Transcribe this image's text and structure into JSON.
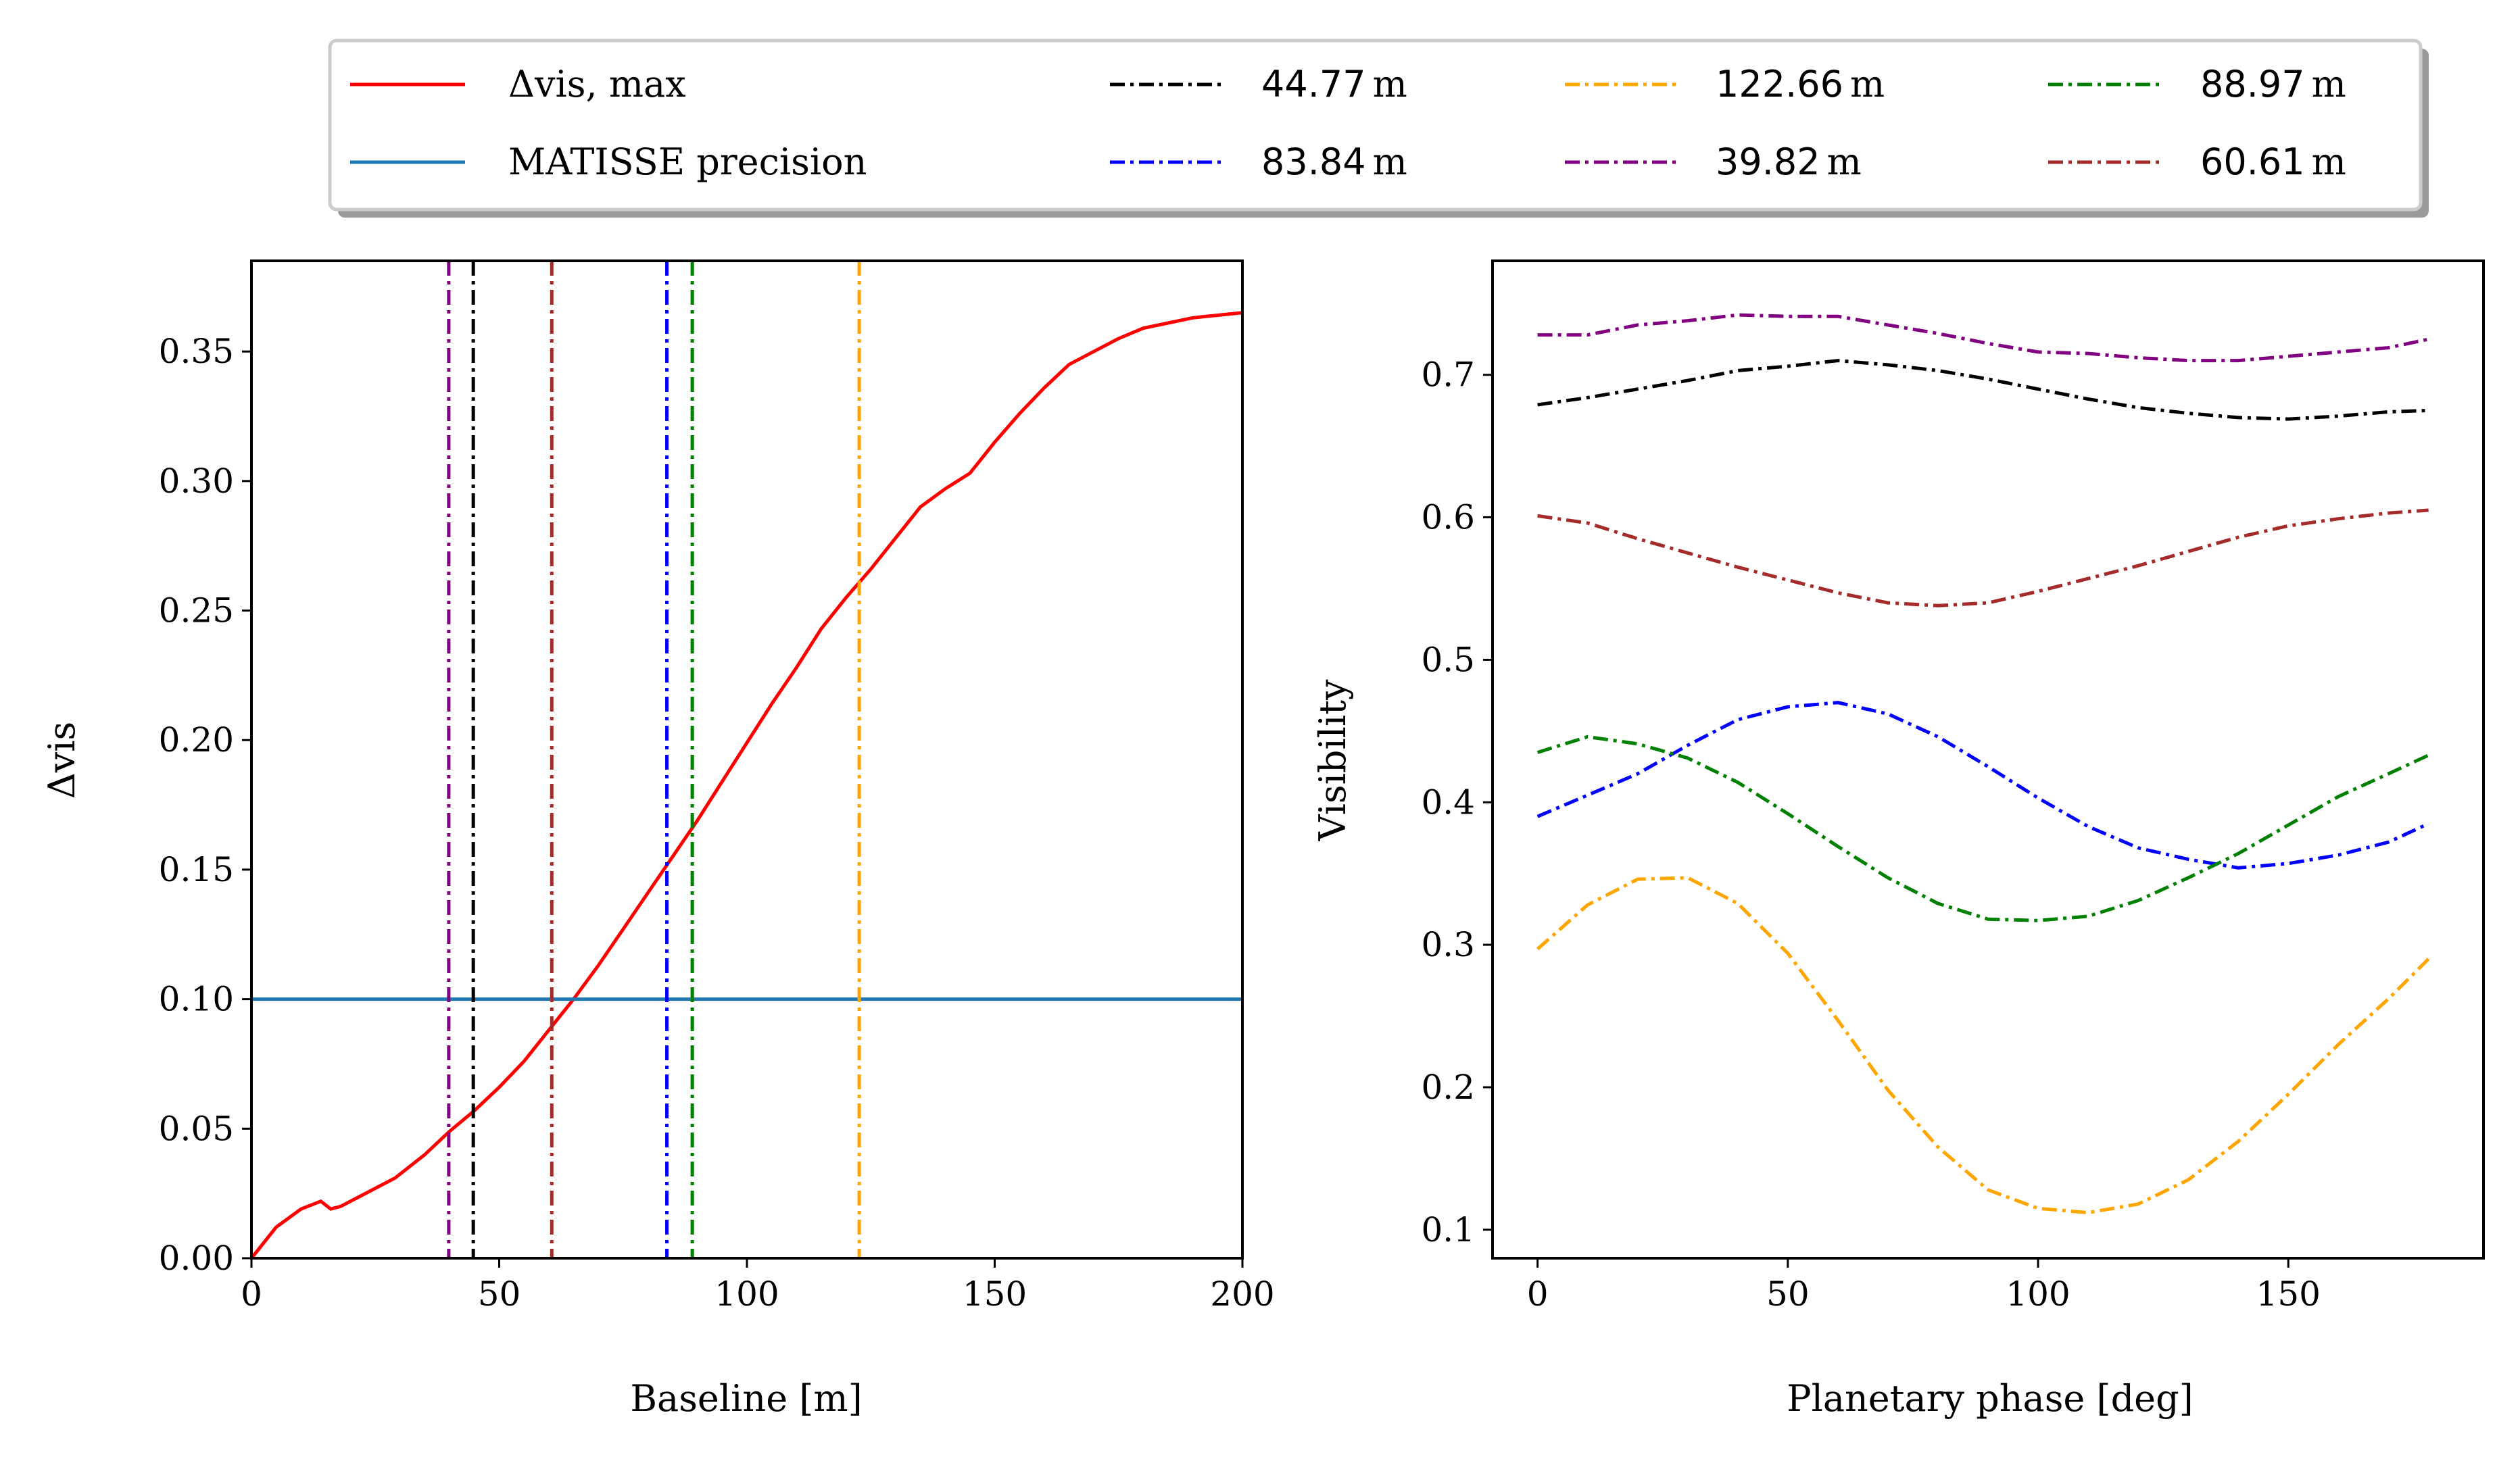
{
  "legend": {
    "entries": [
      {
        "label": "Δvis, max",
        "color": "#ff0000",
        "style": "solid"
      },
      {
        "label": "MATISSE precision",
        "color": "#1f77b4",
        "style": "solid"
      },
      {
        "value": "44.77",
        "unit": "m",
        "color": "#000000",
        "style": "dashdot"
      },
      {
        "value": "83.84",
        "unit": "m",
        "color": "#0000ff",
        "style": "dashdot"
      },
      {
        "value": "122.66",
        "unit": "m",
        "color": "#ffa500",
        "style": "dashdot"
      },
      {
        "value": "39.82",
        "unit": "m",
        "color": "#800080",
        "style": "dashdot"
      },
      {
        "value": "88.97",
        "unit": "m",
        "color": "#008000",
        "style": "dashdot"
      },
      {
        "value": "60.61",
        "unit": "m",
        "color": "#a52a2a",
        "style": "dashdot"
      }
    ]
  },
  "chart_data": [
    {
      "type": "line",
      "xlabel": "Baseline [m]",
      "ylabel": "Δvis",
      "xlim": [
        0,
        200
      ],
      "ylim": [
        0,
        0.385
      ],
      "xticks": [
        "0",
        "50",
        "100",
        "150",
        "200"
      ],
      "yticks": [
        "0.00",
        "0.05",
        "0.10",
        "0.15",
        "0.20",
        "0.25",
        "0.30",
        "0.35"
      ],
      "series": [
        {
          "name": "Δvis, max",
          "color": "#ff0000",
          "x": [
            0,
            5,
            10,
            14,
            16,
            18,
            22,
            25,
            29,
            35,
            40,
            45,
            50,
            55,
            60,
            65,
            70,
            75,
            80,
            85,
            90,
            95,
            100,
            105,
            110,
            115,
            120,
            125,
            130,
            135,
            140,
            145,
            150,
            155,
            160,
            165,
            170,
            175,
            180,
            185,
            190,
            195,
            200
          ],
          "y": [
            0.0,
            0.012,
            0.019,
            0.022,
            0.019,
            0.02,
            0.024,
            0.027,
            0.031,
            0.04,
            0.049,
            0.057,
            0.066,
            0.076,
            0.088,
            0.1,
            0.113,
            0.127,
            0.141,
            0.155,
            0.169,
            0.184,
            0.199,
            0.214,
            0.228,
            0.243,
            0.255,
            0.266,
            0.278,
            0.29,
            0.297,
            0.303,
            0.315,
            0.326,
            0.336,
            0.345,
            0.35,
            0.355,
            0.359,
            0.361,
            0.363,
            0.364,
            0.365
          ]
        },
        {
          "name": "MATISSE precision",
          "color": "#1f77b4",
          "x": [
            0,
            200
          ],
          "y": [
            0.1,
            0.1
          ]
        }
      ],
      "vlines": [
        {
          "x": 39.82,
          "color": "#800080"
        },
        {
          "x": 44.77,
          "color": "#000000"
        },
        {
          "x": 60.61,
          "color": "#a52a2a"
        },
        {
          "x": 83.84,
          "color": "#0000ff"
        },
        {
          "x": 88.97,
          "color": "#008000"
        },
        {
          "x": 122.66,
          "color": "#ffa500"
        }
      ]
    },
    {
      "type": "line",
      "xlabel": "Planetary phase [deg]",
      "ylabel": "Visibility",
      "xlim": [
        -9,
        189
      ],
      "ylim": [
        0.08,
        0.78
      ],
      "xticks": [
        "0",
        "50",
        "100",
        "150"
      ],
      "yticks": [
        "0.1",
        "0.2",
        "0.3",
        "0.4",
        "0.5",
        "0.6",
        "0.7"
      ],
      "series": [
        {
          "name": "39.82 m",
          "color": "#800080",
          "x": [
            0,
            10,
            20,
            30,
            40,
            50,
            60,
            70,
            80,
            90,
            100,
            110,
            120,
            130,
            140,
            150,
            160,
            170,
            178
          ],
          "y": [
            0.728,
            0.728,
            0.735,
            0.738,
            0.742,
            0.741,
            0.741,
            0.735,
            0.729,
            0.722,
            0.716,
            0.715,
            0.712,
            0.71,
            0.71,
            0.713,
            0.716,
            0.719,
            0.725
          ]
        },
        {
          "name": "44.77 m",
          "color": "#000000",
          "x": [
            0,
            10,
            20,
            30,
            40,
            50,
            60,
            70,
            80,
            90,
            100,
            110,
            120,
            130,
            140,
            150,
            160,
            170,
            178
          ],
          "y": [
            0.679,
            0.684,
            0.69,
            0.696,
            0.703,
            0.706,
            0.71,
            0.707,
            0.703,
            0.697,
            0.69,
            0.683,
            0.677,
            0.673,
            0.67,
            0.669,
            0.671,
            0.674,
            0.675
          ]
        },
        {
          "name": "60.61 m",
          "color": "#a52a2a",
          "x": [
            0,
            10,
            20,
            30,
            40,
            50,
            60,
            70,
            80,
            90,
            100,
            110,
            120,
            130,
            140,
            150,
            160,
            170,
            178
          ],
          "y": [
            0.601,
            0.596,
            0.585,
            0.575,
            0.565,
            0.556,
            0.547,
            0.54,
            0.538,
            0.54,
            0.548,
            0.557,
            0.566,
            0.576,
            0.586,
            0.594,
            0.599,
            0.603,
            0.605
          ]
        },
        {
          "name": "83.84 m",
          "color": "#0000ff",
          "x": [
            0,
            10,
            20,
            30,
            40,
            50,
            60,
            70,
            80,
            90,
            100,
            110,
            120,
            130,
            140,
            150,
            160,
            170,
            178
          ],
          "y": [
            0.39,
            0.405,
            0.42,
            0.44,
            0.458,
            0.467,
            0.47,
            0.462,
            0.446,
            0.425,
            0.403,
            0.383,
            0.368,
            0.36,
            0.354,
            0.357,
            0.363,
            0.372,
            0.385
          ]
        },
        {
          "name": "88.97 m",
          "color": "#008000",
          "x": [
            0,
            10,
            20,
            30,
            40,
            50,
            60,
            70,
            80,
            90,
            100,
            110,
            120,
            130,
            140,
            150,
            160,
            170,
            178
          ],
          "y": [
            0.435,
            0.446,
            0.441,
            0.431,
            0.414,
            0.392,
            0.369,
            0.347,
            0.329,
            0.318,
            0.317,
            0.32,
            0.331,
            0.347,
            0.364,
            0.384,
            0.404,
            0.42,
            0.433
          ]
        },
        {
          "name": "122.66 m",
          "color": "#ffa500",
          "x": [
            0,
            10,
            20,
            30,
            40,
            50,
            60,
            70,
            80,
            90,
            100,
            110,
            120,
            130,
            140,
            150,
            160,
            170,
            178
          ],
          "y": [
            0.297,
            0.328,
            0.346,
            0.347,
            0.329,
            0.294,
            0.247,
            0.198,
            0.158,
            0.128,
            0.115,
            0.112,
            0.118,
            0.135,
            0.162,
            0.195,
            0.23,
            0.262,
            0.29
          ]
        }
      ]
    }
  ]
}
